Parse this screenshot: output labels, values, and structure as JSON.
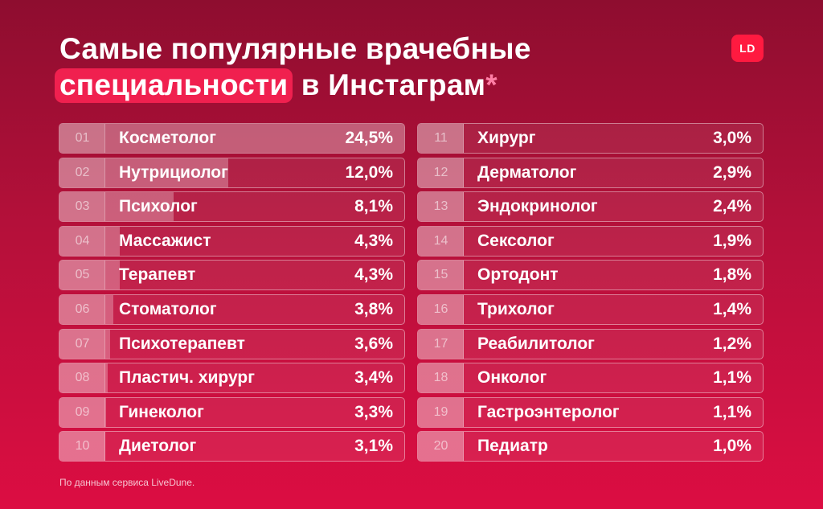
{
  "title": {
    "line1": "Самые популярные врачебные",
    "highlight": "специальности",
    "rest": " в Инстаграм",
    "asterisk": "*"
  },
  "logo": "LD",
  "source": "По данным сервиса LiveDune.",
  "colors": {
    "background_top": "#8e0d2f",
    "background_bottom": "#dc0d42",
    "highlight": "#f0204f",
    "logo": "#ff1a40",
    "asterisk": "#ff7ea5"
  },
  "chart_data": {
    "type": "bar",
    "orientation": "horizontal",
    "unit": "%",
    "xlim": [
      0,
      24.5
    ],
    "categories": [
      "Косметолог",
      "Нутрициолог",
      "Психолог",
      "Массажист",
      "Терапевт",
      "Стоматолог",
      "Психотерапевт",
      "Пластич. хирург",
      "Гинеколог",
      "Диетолог",
      "Хирург",
      "Дерматолог",
      "Эндокринолог",
      "Сексолог",
      "Ортодонт",
      "Трихолог",
      "Реабилитолог",
      "Онколог",
      "Гастроэнтеролог",
      "Педиатр"
    ],
    "values": [
      24.5,
      12.0,
      8.1,
      4.3,
      4.3,
      3.8,
      3.6,
      3.4,
      3.3,
      3.1,
      3.0,
      2.9,
      2.4,
      1.9,
      1.8,
      1.4,
      1.2,
      1.1,
      1.1,
      1.0
    ],
    "ranks": [
      "01",
      "02",
      "03",
      "04",
      "05",
      "06",
      "07",
      "08",
      "09",
      "10",
      "11",
      "12",
      "13",
      "14",
      "15",
      "16",
      "17",
      "18",
      "19",
      "20"
    ],
    "value_labels": [
      "24,5%",
      "12,0%",
      "8,1%",
      "4,3%",
      "4,3%",
      "3,8%",
      "3,6%",
      "3,4%",
      "3,3%",
      "3,1%",
      "3,0%",
      "2,9%",
      "2,4%",
      "1,9%",
      "1,8%",
      "1,4%",
      "1,2%",
      "1,1%",
      "1,1%",
      "1,0%"
    ]
  }
}
